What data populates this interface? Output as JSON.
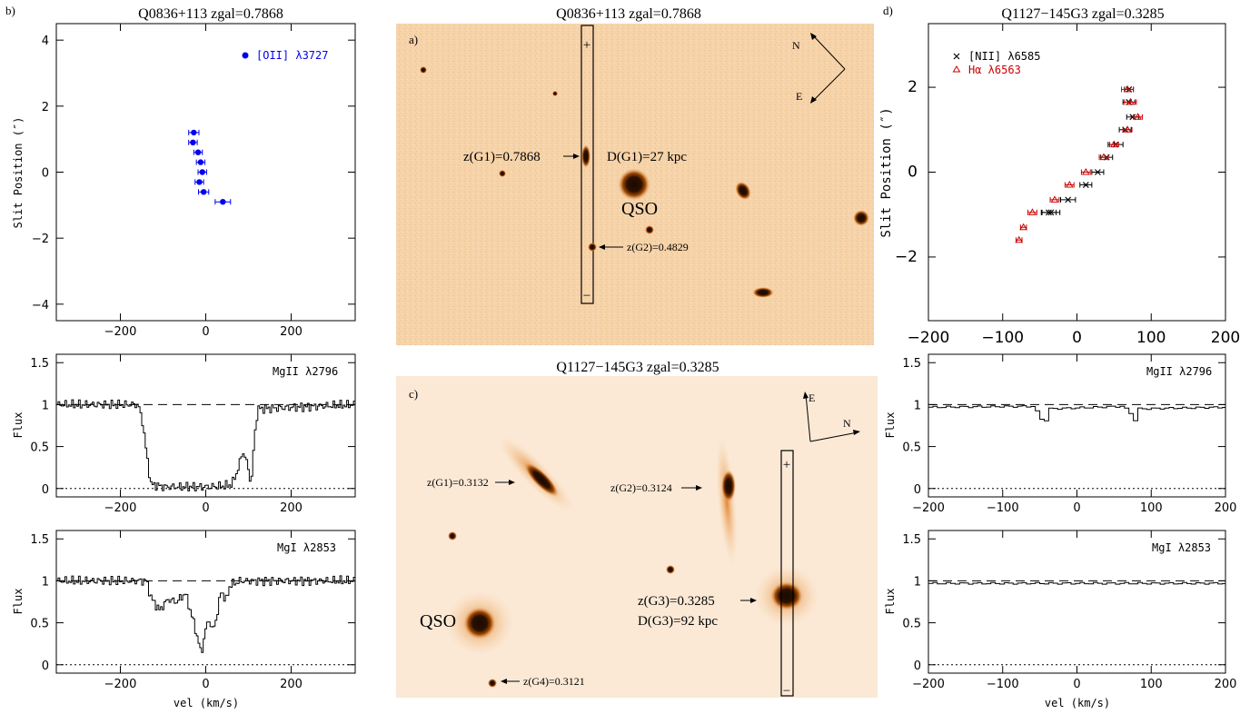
{
  "panel_letters": {
    "a": "a)",
    "b": "b)",
    "c": "c)",
    "d": "d)"
  },
  "titles": {
    "b": "Q0836+113 zgal=0.7868",
    "a": "Q0836+113 zgal=0.7868",
    "c": "Q1127−145G3 zgal=0.3285",
    "d": "Q1127−145G3 zgal=0.3285"
  },
  "axis_labels": {
    "slit_position": "Slit Position (″)",
    "flux": "Flux",
    "vel": "vel (km/s)"
  },
  "panel_labels": {
    "b_rc": "[OII] λ3727",
    "b_mg2": "MgII λ2796",
    "b_mg1": "MgI λ2853",
    "d_nii": "[NII] λ6585",
    "d_ha": "Hα  λ6563",
    "d_mg2": "MgII λ2796",
    "d_mg1": "MgI λ2853"
  },
  "image_a": {
    "g1_label": "z(G1)=0.7868",
    "d_label": "D(G1)=27 kpc",
    "qso": "QSO",
    "g2_label": "z(G2)=0.4829",
    "compass_n": "N",
    "compass_e": "E",
    "plus": "+",
    "minus": "−"
  },
  "image_c": {
    "g1_label": "z(G1)=0.3132",
    "g2_label": "z(G2)=0.3124",
    "g3_label": "z(G3)=0.3285",
    "d_label": "D(G3)=92 kpc",
    "g4_label": "z(G4)=0.3121",
    "qso": "QSO",
    "compass_n": "N",
    "compass_e": "E",
    "plus": "+",
    "minus": "−"
  },
  "colors": {
    "oii": "#0000ee",
    "halpha": "#cc0000",
    "nii": "#000000",
    "image_bg": "#f8d8b4"
  },
  "chart_data": [
    {
      "id": "b_rotation",
      "type": "scatter",
      "title": "Q0836+113 zgal=0.7868",
      "xlabel": "",
      "ylabel": "Slit Position (″)",
      "xlim": [
        -350,
        350
      ],
      "ylim": [
        -4.5,
        4.5
      ],
      "xticks": [
        -200,
        0,
        200
      ],
      "yticks": [
        -4,
        -2,
        0,
        2,
        4
      ],
      "legend": "[OII] λ3727",
      "series": [
        {
          "name": "[OII] λ3727",
          "x": [
            -28,
            -30,
            -18,
            -12,
            -8,
            -15,
            -5,
            40
          ],
          "xerr": [
            12,
            10,
            10,
            10,
            10,
            10,
            12,
            18
          ],
          "y": [
            1.2,
            0.9,
            0.6,
            0.3,
            0.0,
            -0.3,
            -0.6,
            -0.9
          ]
        }
      ]
    },
    {
      "id": "b_mgii",
      "type": "line",
      "title": "",
      "xlabel": "",
      "ylabel": "Flux",
      "xlim": [
        -350,
        350
      ],
      "ylim": [
        -0.1,
        1.6
      ],
      "xticks": [
        -200,
        0,
        200
      ],
      "yticks": [
        0,
        0.5,
        1,
        1.5
      ],
      "label": "MgII λ2796",
      "profile": [
        [
          -350,
          1.0
        ],
        [
          -160,
          1.0
        ],
        [
          -150,
          0.8
        ],
        [
          -140,
          0.4
        ],
        [
          -130,
          0.05
        ],
        [
          -100,
          0.02
        ],
        [
          -50,
          0.02
        ],
        [
          0,
          0.02
        ],
        [
          40,
          0.03
        ],
        [
          60,
          0.05
        ],
        [
          75,
          0.25
        ],
        [
          85,
          0.45
        ],
        [
          95,
          0.3
        ],
        [
          105,
          0.05
        ],
        [
          112,
          0.6
        ],
        [
          120,
          0.95
        ],
        [
          350,
          1.0
        ]
      ]
    },
    {
      "id": "b_mgi",
      "type": "line",
      "title": "",
      "xlabel": "vel (km/s)",
      "ylabel": "Flux",
      "xlim": [
        -350,
        350
      ],
      "ylim": [
        -0.1,
        1.6
      ],
      "xticks": [
        -200,
        0,
        200
      ],
      "yticks": [
        0,
        0.5,
        1,
        1.5
      ],
      "label": "MgI λ2853",
      "profile": [
        [
          -350,
          1.0
        ],
        [
          -140,
          1.0
        ],
        [
          -130,
          0.8
        ],
        [
          -110,
          0.65
        ],
        [
          -90,
          0.78
        ],
        [
          -70,
          0.75
        ],
        [
          -50,
          0.85
        ],
        [
          -35,
          0.6
        ],
        [
          -20,
          0.3
        ],
        [
          -12,
          0.12
        ],
        [
          -5,
          0.35
        ],
        [
          5,
          0.55
        ],
        [
          15,
          0.4
        ],
        [
          25,
          0.6
        ],
        [
          35,
          0.9
        ],
        [
          45,
          0.75
        ],
        [
          55,
          0.95
        ],
        [
          80,
          1.0
        ],
        [
          350,
          1.0
        ]
      ]
    },
    {
      "id": "d_rotation",
      "type": "scatter",
      "title": "Q1127−145G3 zgal=0.3285",
      "xlabel": "",
      "ylabel": "Slit Position (″)",
      "xlim": [
        -200,
        200
      ],
      "ylim": [
        -3.5,
        3.5
      ],
      "xticks": [
        -200,
        -100,
        0,
        100,
        200
      ],
      "yticks": [
        -2,
        0,
        2
      ],
      "series": [
        {
          "name": "[NII] λ6585",
          "x": [
            70,
            70,
            75,
            65,
            52,
            40,
            28,
            12,
            -12,
            -35,
            -38
          ],
          "xerr": [
            6,
            8,
            8,
            8,
            10,
            8,
            8,
            8,
            10,
            12,
            10
          ],
          "y": [
            1.95,
            1.65,
            1.3,
            1.0,
            0.65,
            0.35,
            0.0,
            -0.3,
            -0.65,
            -0.95,
            -0.95
          ],
          "marker": "x"
        },
        {
          "name": "Hα  λ6563",
          "x": [
            68,
            72,
            82,
            68,
            50,
            36,
            12,
            -10,
            -30,
            -60,
            -72,
            -78
          ],
          "xerr": [
            8,
            8,
            6,
            6,
            6,
            6,
            6,
            6,
            6,
            6,
            4,
            4
          ],
          "y": [
            1.95,
            1.65,
            1.3,
            1.0,
            0.65,
            0.35,
            0.0,
            -0.3,
            -0.65,
            -0.95,
            -1.3,
            -1.6
          ],
          "marker": "triangle"
        }
      ]
    },
    {
      "id": "d_mgii",
      "type": "line",
      "title": "",
      "xlabel": "",
      "ylabel": "Flux",
      "xlim": [
        -200,
        200
      ],
      "ylim": [
        -0.1,
        1.6
      ],
      "xticks": [
        -200,
        -100,
        0,
        100,
        200
      ],
      "yticks": [
        0,
        0.5,
        1,
        1.5
      ],
      "label": "MgII λ2796",
      "profile": [
        [
          -200,
          0.97
        ],
        [
          -60,
          0.98
        ],
        [
          -52,
          0.85
        ],
        [
          -45,
          0.78
        ],
        [
          -40,
          0.95
        ],
        [
          60,
          0.98
        ],
        [
          70,
          0.9
        ],
        [
          75,
          0.78
        ],
        [
          80,
          0.95
        ],
        [
          200,
          0.97
        ]
      ]
    },
    {
      "id": "d_mgi",
      "type": "line",
      "title": "",
      "xlabel": "vel (km/s)",
      "ylabel": "Flux",
      "xlim": [
        -200,
        200
      ],
      "ylim": [
        -0.1,
        1.6
      ],
      "xticks": [
        -200,
        -100,
        0,
        100,
        200
      ],
      "yticks": [
        0,
        0.5,
        1,
        1.5
      ],
      "label": "MgI λ2853",
      "profile": [
        [
          -200,
          0.97
        ],
        [
          200,
          0.97
        ]
      ]
    }
  ]
}
